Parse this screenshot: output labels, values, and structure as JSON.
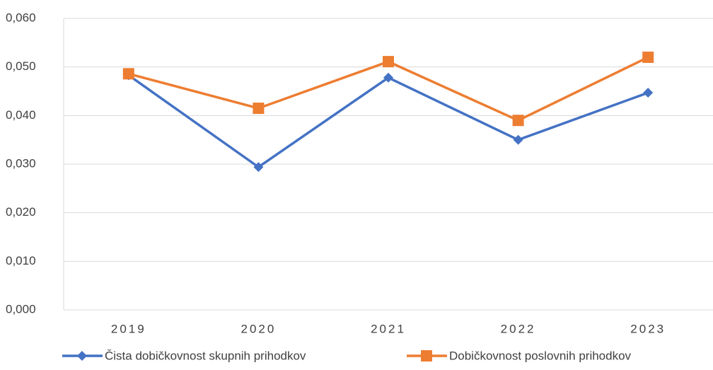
{
  "chart_data": {
    "type": "line",
    "categories": [
      "2019",
      "2020",
      "2021",
      "2022",
      "2023"
    ],
    "series": [
      {
        "name": "Čista dobičkovnost skupnih prihodkov",
        "color": "#4472c4",
        "marker": "diamond",
        "values": [
          0.0483,
          0.0294,
          0.0478,
          0.035,
          0.0447
        ]
      },
      {
        "name": "Dobičkovnost poslovnih prihodkov",
        "color": "#ed7d31",
        "marker": "square",
        "values": [
          0.0486,
          0.0415,
          0.0511,
          0.039,
          0.052
        ]
      }
    ],
    "ylim": [
      0,
      0.06
    ],
    "yticks": [
      {
        "value": 0,
        "label": "0,000"
      },
      {
        "value": 0.01,
        "label": "0,010"
      },
      {
        "value": 0.02,
        "label": "0,020"
      },
      {
        "value": 0.03,
        "label": "0,030"
      },
      {
        "value": 0.04,
        "label": "0,040"
      },
      {
        "value": 0.05,
        "label": "0,050"
      },
      {
        "value": 0.06,
        "label": "0,060"
      }
    ],
    "grid": true,
    "legend": "bottom"
  }
}
